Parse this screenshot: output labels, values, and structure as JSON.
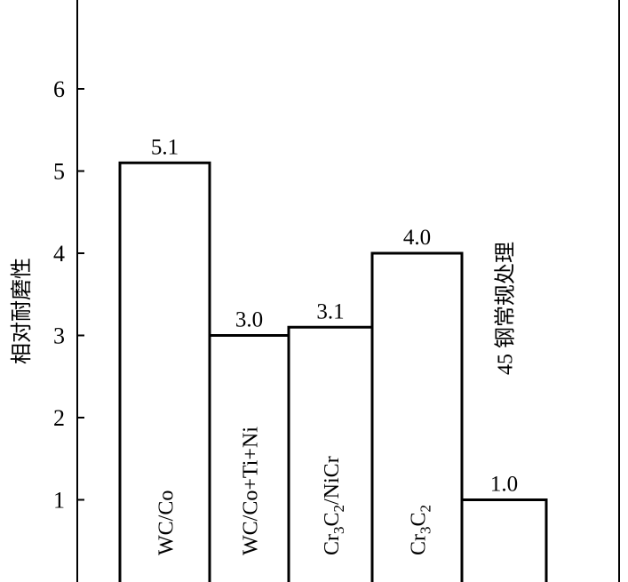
{
  "chart_data": {
    "type": "bar",
    "ylabel": "相对耐磨性",
    "ylim": [
      0,
      7
    ],
    "yticks": [
      1,
      2,
      3,
      4,
      5,
      6
    ],
    "grid": false,
    "categories": [
      {
        "label": "WC/Co",
        "parts": [
          {
            "t": "WC/Co"
          }
        ]
      },
      {
        "label": "WC/Co+Ti+Ni",
        "parts": [
          {
            "t": "WC/Co+Ti+Ni"
          }
        ]
      },
      {
        "label": "Cr3C2/NiCr",
        "parts": [
          {
            "t": "Cr"
          },
          {
            "t": "3",
            "sub": true
          },
          {
            "t": "C"
          },
          {
            "t": "2",
            "sub": true
          },
          {
            "t": "/NiCr"
          }
        ]
      },
      {
        "label": "Cr3C2",
        "parts": [
          {
            "t": "Cr"
          },
          {
            "t": "3",
            "sub": true
          },
          {
            "t": "C"
          },
          {
            "t": "2",
            "sub": true
          }
        ]
      },
      {
        "label": "45 钢常规处理",
        "parts": [
          {
            "t": "45 钢常规处理"
          }
        ]
      }
    ],
    "values": [
      5.1,
      3.0,
      3.1,
      4.0,
      1.0
    ],
    "value_labels": [
      "5.1",
      "3.0",
      "3.1",
      "4.0",
      "1.0"
    ]
  }
}
